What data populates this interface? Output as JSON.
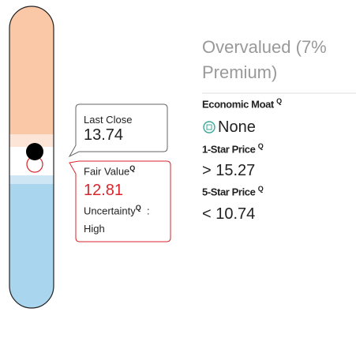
{
  "valuation": {
    "label": "Overvalued (7% Premium)"
  },
  "economic_moat": {
    "label": "Economic Moat",
    "q": "Q",
    "value": "None"
  },
  "one_star_price": {
    "label": "1-Star Price",
    "q": "Q",
    "symbol": ">",
    "value": 15.27
  },
  "five_star_price": {
    "label": "5-Star Price",
    "q": "Q",
    "symbol": "<",
    "value": 10.74
  },
  "last_close": {
    "label": "Last Close",
    "value": 13.74
  },
  "fair_value": {
    "label": "Fair Value",
    "q": "Q",
    "value": 12.81,
    "uncertainty_label": "Uncertainty",
    "uncertainty_q": "Q",
    "colon": ":",
    "uncertainty": "High"
  }
}
